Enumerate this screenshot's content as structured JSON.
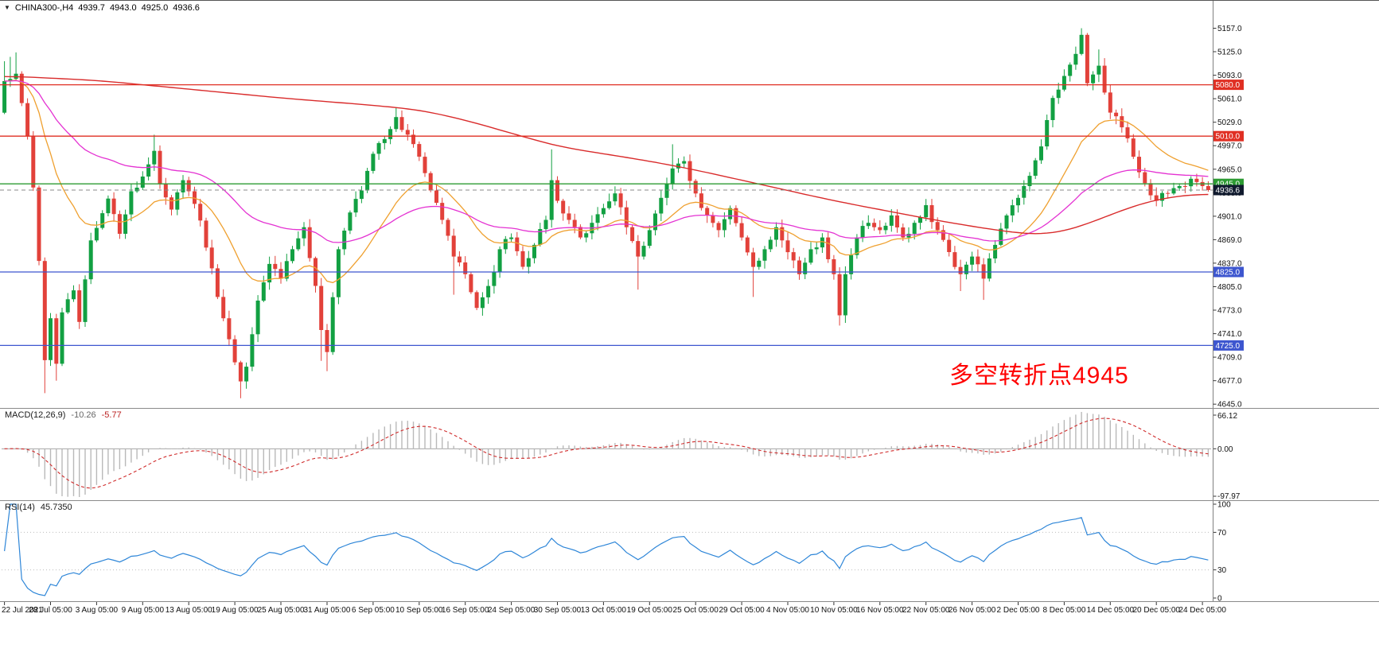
{
  "title": {
    "symbol": "CHINA300-,H4",
    "open": "4939.7",
    "high": "4943.0",
    "low": "4925.0",
    "close": "4936.6"
  },
  "annotation": {
    "text": "多空转折点4945",
    "color": "#ff0000"
  },
  "colors": {
    "bull": "#12a042",
    "bear": "#e2413a",
    "ma_red": "#d92b2b",
    "ma_magenta": "#e432d2",
    "ma_orange": "#efa02f",
    "level_red": "#e02f23",
    "level_green": "#2d9b33",
    "level_blue": "#3d56cf",
    "badge_dark": "#101a2e",
    "macd_hist": "#b9b9b9",
    "macd_signal": "#d02c2c",
    "rsi_line": "#2e86d8",
    "axis_text": "#101010",
    "divider": "#8a8a8a"
  },
  "levels": [
    {
      "price": 5080.0,
      "label": "5080.0",
      "color": "#e02f23"
    },
    {
      "price": 5010.0,
      "label": "5010.0",
      "color": "#e02f23"
    },
    {
      "price": 4945.0,
      "label": "4945.0",
      "color": "#2d9b33"
    },
    {
      "price": 4825.0,
      "label": "4825.0",
      "color": "#3d56cf"
    },
    {
      "price": 4725.0,
      "label": "4725.0",
      "color": "#3d56cf"
    }
  ],
  "current_price": {
    "value": 4936.6,
    "label": "4936.6"
  },
  "macd": {
    "label": "MACD(12,26,9)",
    "value_main": "-10.26",
    "value_signal": "-5.77",
    "axis_max": "66.12",
    "axis_zero": "0.00",
    "axis_min": "-97.97"
  },
  "rsi": {
    "label": "RSI(14)",
    "value": "45.7350",
    "axis_labels": [
      "100",
      "70",
      "30",
      "0"
    ],
    "axis_values": [
      100,
      70,
      30,
      0
    ],
    "level_lines": [
      70,
      30
    ]
  },
  "chart_data": {
    "type": "candlestick",
    "title": "CHINA300-,H4",
    "timeframe": "H4",
    "ylim": [
      4645,
      5157
    ],
    "y_step": 32,
    "candle_count": 210,
    "label_every": 8,
    "first_open": 5042,
    "x_labels": [
      "22 Jul 2021",
      "28 Jul 05:00",
      "3 Aug 05:00",
      "9 Aug 05:00",
      "13 Aug 05:00",
      "19 Aug 05:00",
      "25 Aug 05:00",
      "31 Aug 05:00",
      "6 Sep 05:00",
      "10 Sep 05:00",
      "16 Sep 05:00",
      "24 Sep 05:00",
      "30 Sep 05:00",
      "13 Oct 05:00",
      "19 Oct 05:00",
      "25 Oct 05:00",
      "29 Oct 05:00",
      "4 Nov 05:00",
      "10 Nov 05:00",
      "16 Nov 05:00",
      "22 Nov 05:00",
      "26 Nov 05:00",
      "2 Dec 05:00",
      "8 Dec 05:00",
      "14 Dec 05:00",
      "20 Dec 05:00",
      "24 Dec 05:00"
    ],
    "close_waypoints": [
      [
        0,
        5085
      ],
      [
        2,
        5095
      ],
      [
        3,
        5055
      ],
      [
        4,
        5010
      ],
      [
        5,
        4940
      ],
      [
        6,
        4840
      ],
      [
        7,
        4705
      ],
      [
        8,
        4762
      ],
      [
        9,
        4700
      ],
      [
        10,
        4770
      ],
      [
        12,
        4800
      ],
      [
        13,
        4757
      ],
      [
        14,
        4815
      ],
      [
        15,
        4868
      ],
      [
        16,
        4885
      ],
      [
        18,
        4925
      ],
      [
        20,
        4877
      ],
      [
        22,
        4935
      ],
      [
        24,
        4955
      ],
      [
        26,
        4990
      ],
      [
        27,
        4945
      ],
      [
        29,
        4910
      ],
      [
        31,
        4950
      ],
      [
        32,
        4935
      ],
      [
        34,
        4895
      ],
      [
        36,
        4830
      ],
      [
        38,
        4762
      ],
      [
        40,
        4702
      ],
      [
        41,
        4676
      ],
      [
        42,
        4696
      ],
      [
        44,
        4786
      ],
      [
        46,
        4836
      ],
      [
        48,
        4816
      ],
      [
        50,
        4856
      ],
      [
        52,
        4886
      ],
      [
        54,
        4806
      ],
      [
        55,
        4746
      ],
      [
        56,
        4716
      ],
      [
        58,
        4856
      ],
      [
        60,
        4906
      ],
      [
        62,
        4936
      ],
      [
        64,
        4986
      ],
      [
        66,
        5006
      ],
      [
        68,
        5036
      ],
      [
        70,
        5012
      ],
      [
        72,
        4982
      ],
      [
        74,
        4936
      ],
      [
        76,
        4896
      ],
      [
        78,
        4846
      ],
      [
        80,
        4822
      ],
      [
        82,
        4776
      ],
      [
        84,
        4806
      ],
      [
        86,
        4856
      ],
      [
        88,
        4872
      ],
      [
        90,
        4832
      ],
      [
        92,
        4862
      ],
      [
        94,
        4896
      ],
      [
        95,
        4950
      ],
      [
        96,
        4922
      ],
      [
        98,
        4896
      ],
      [
        100,
        4872
      ],
      [
        102,
        4892
      ],
      [
        104,
        4912
      ],
      [
        106,
        4932
      ],
      [
        108,
        4886
      ],
      [
        110,
        4846
      ],
      [
        112,
        4882
      ],
      [
        114,
        4926
      ],
      [
        116,
        4966
      ],
      [
        118,
        4976
      ],
      [
        120,
        4932
      ],
      [
        122,
        4902
      ],
      [
        124,
        4882
      ],
      [
        126,
        4912
      ],
      [
        128,
        4872
      ],
      [
        130,
        4832
      ],
      [
        132,
        4856
      ],
      [
        134,
        4886
      ],
      [
        136,
        4852
      ],
      [
        138,
        4822
      ],
      [
        140,
        4856
      ],
      [
        142,
        4872
      ],
      [
        144,
        4822
      ],
      [
        145,
        4766
      ],
      [
        146,
        4822
      ],
      [
        148,
        4872
      ],
      [
        150,
        4892
      ],
      [
        152,
        4882
      ],
      [
        154,
        4902
      ],
      [
        156,
        4872
      ],
      [
        158,
        4892
      ],
      [
        160,
        4916
      ],
      [
        162,
        4882
      ],
      [
        164,
        4852
      ],
      [
        166,
        4822
      ],
      [
        168,
        4846
      ],
      [
        170,
        4816
      ],
      [
        172,
        4862
      ],
      [
        174,
        4902
      ],
      [
        176,
        4926
      ],
      [
        178,
        4956
      ],
      [
        180,
        4996
      ],
      [
        182,
        5062
      ],
      [
        184,
        5092
      ],
      [
        186,
        5122
      ],
      [
        187,
        5148
      ],
      [
        188,
        5082
      ],
      [
        190,
        5106
      ],
      [
        192,
        5042
      ],
      [
        194,
        5022
      ],
      [
        196,
        4982
      ],
      [
        198,
        4946
      ],
      [
        200,
        4922
      ],
      [
        202,
        4932
      ],
      [
        204,
        4942
      ],
      [
        206,
        4952
      ],
      [
        208,
        4942
      ],
      [
        209,
        4936.6
      ]
    ],
    "wick_overrides": [
      [
        0,
        "h",
        5112
      ],
      [
        1,
        "h",
        5118
      ],
      [
        2,
        "h",
        5124
      ],
      [
        7,
        "l",
        4660
      ],
      [
        9,
        "l",
        4677
      ],
      [
        26,
        "h",
        5012
      ],
      [
        41,
        "l",
        4653
      ],
      [
        42,
        "l",
        4666
      ],
      [
        55,
        "l",
        4704
      ],
      [
        56,
        "l",
        4690
      ],
      [
        68,
        "h",
        5049
      ],
      [
        78,
        "l",
        4794
      ],
      [
        95,
        "h",
        4992
      ],
      [
        110,
        "l",
        4801
      ],
      [
        116,
        "h",
        4999
      ],
      [
        130,
        "l",
        4791
      ],
      [
        145,
        "l",
        4752
      ],
      [
        166,
        "l",
        4799
      ],
      [
        170,
        "l",
        4787
      ],
      [
        186,
        "h",
        5132
      ],
      [
        187,
        "h",
        5157
      ],
      [
        190,
        "h",
        5128
      ]
    ],
    "red_ma_waypoints": [
      [
        0,
        5092
      ],
      [
        16,
        5086
      ],
      [
        32,
        5074
      ],
      [
        48,
        5062
      ],
      [
        64,
        5052
      ],
      [
        72,
        5046
      ],
      [
        80,
        5032
      ],
      [
        88,
        5014
      ],
      [
        96,
        4996
      ],
      [
        104,
        4986
      ],
      [
        112,
        4976
      ],
      [
        120,
        4964
      ],
      [
        128,
        4950
      ],
      [
        136,
        4936
      ],
      [
        144,
        4922
      ],
      [
        152,
        4910
      ],
      [
        160,
        4898
      ],
      [
        168,
        4887
      ],
      [
        176,
        4878
      ],
      [
        180,
        4875
      ],
      [
        184,
        4880
      ],
      [
        188,
        4890
      ],
      [
        192,
        4903
      ],
      [
        196,
        4915
      ],
      [
        200,
        4924
      ],
      [
        204,
        4929
      ],
      [
        209,
        4932
      ]
    ],
    "horizontal_lines": [
      5080,
      5010,
      4945,
      4825,
      4725
    ]
  }
}
